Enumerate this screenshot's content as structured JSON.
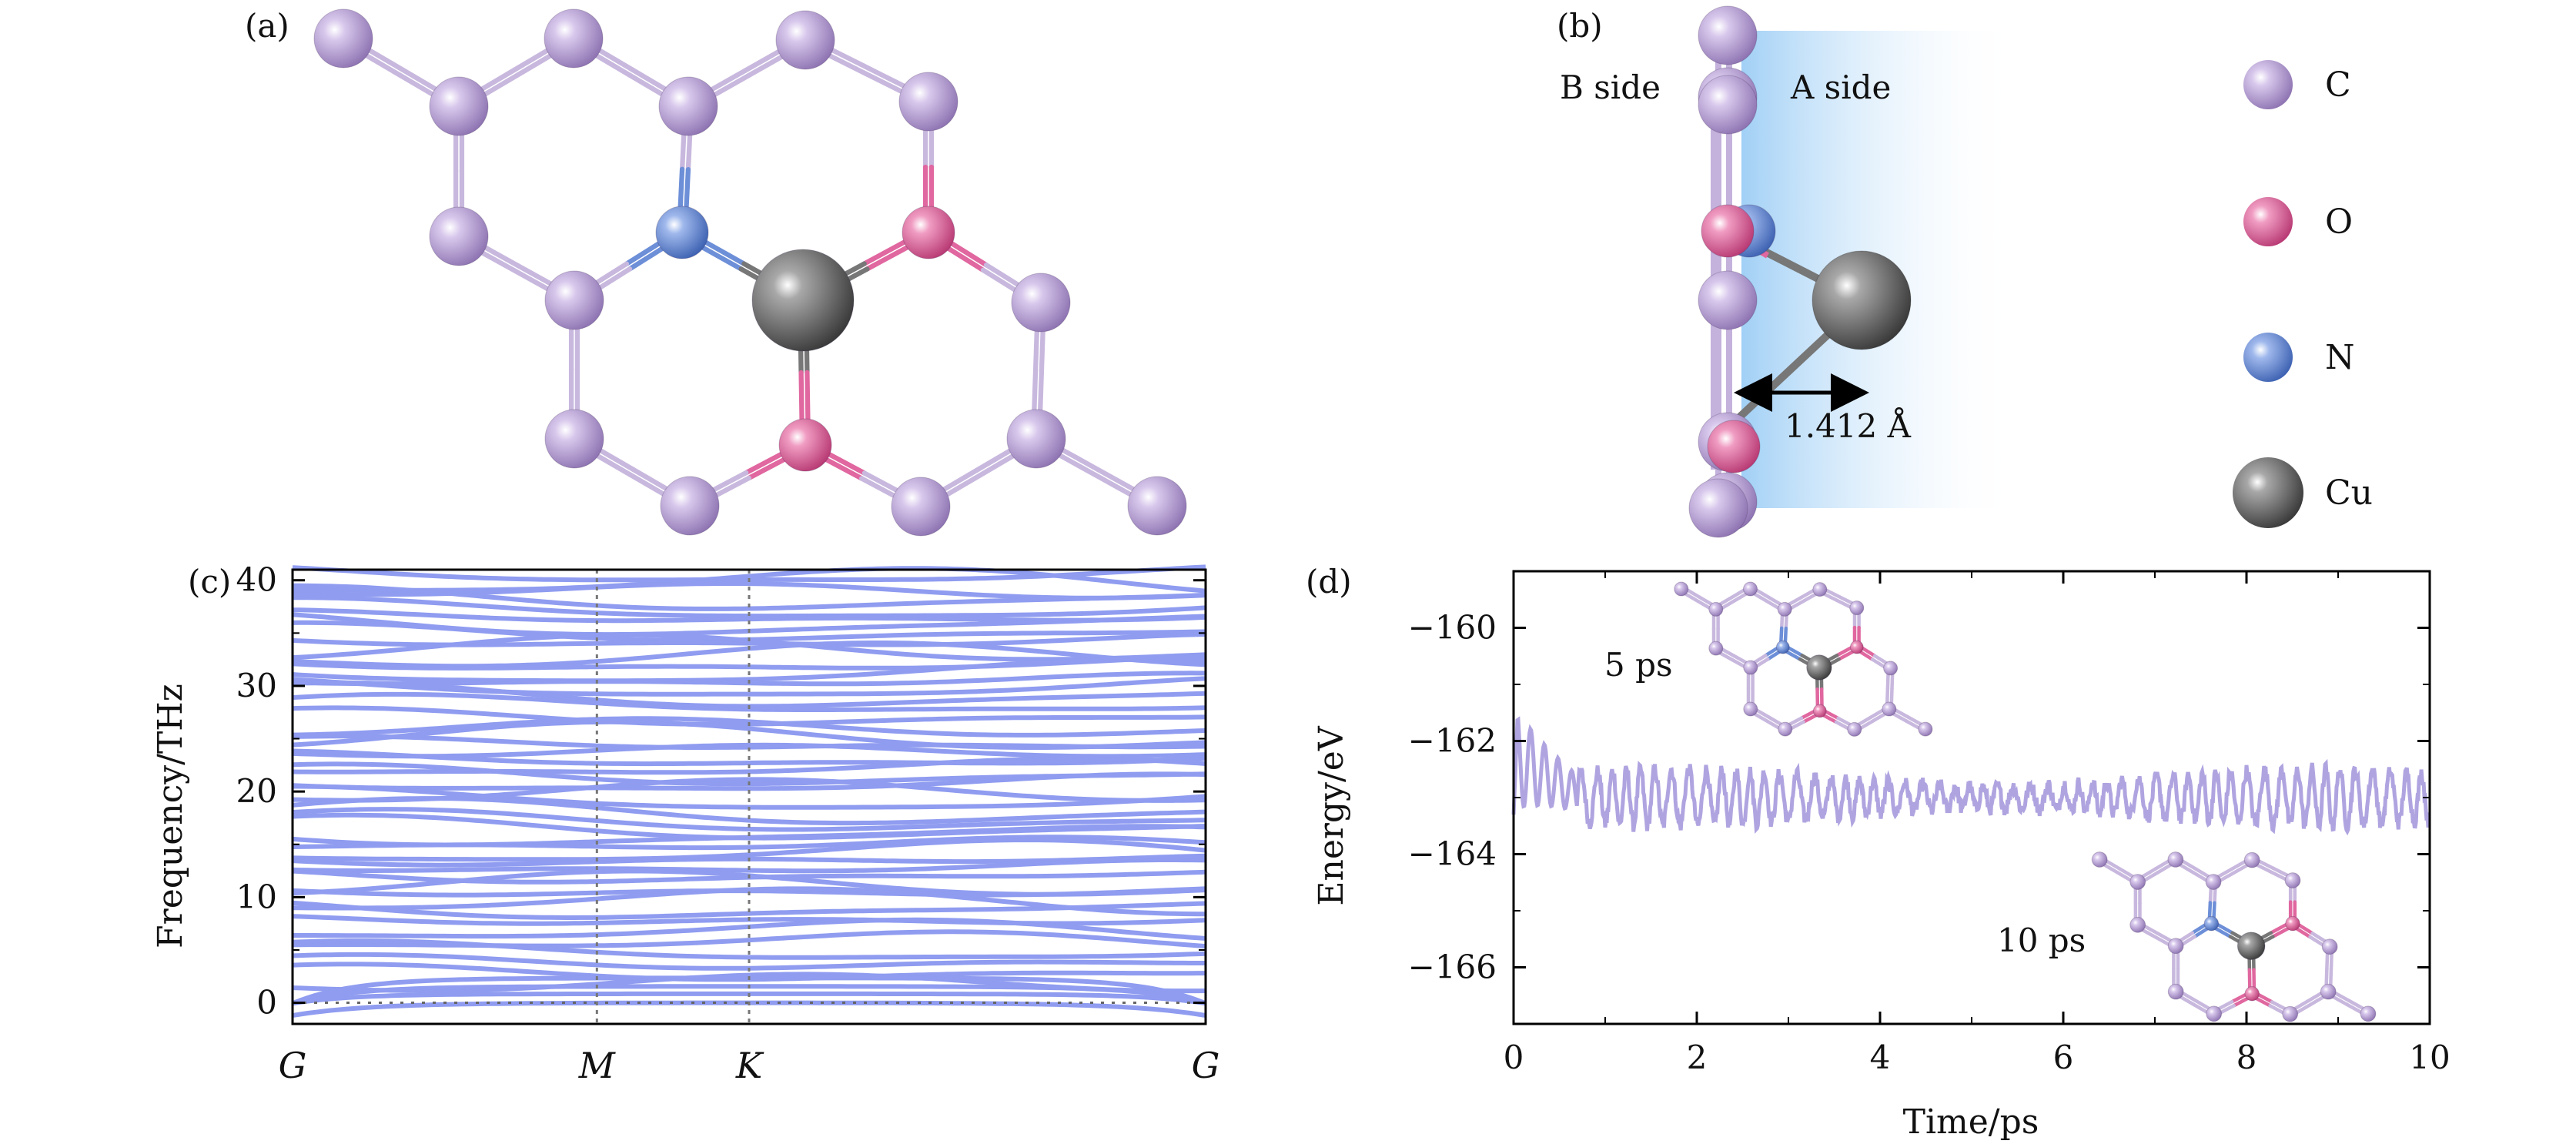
{
  "panels": {
    "a": {
      "label": "(a)"
    },
    "b": {
      "label": "(b)",
      "b_side": "B side",
      "a_side": "A side",
      "distance": "1.412 Å"
    },
    "c": {
      "label": "(c)"
    },
    "d": {
      "label": "(d)",
      "inset_5ps": "5 ps",
      "inset_10ps": "10 ps"
    }
  },
  "legend": [
    {
      "label": "C",
      "color": "#b39bd0"
    },
    {
      "label": "O",
      "color": "#e0679f"
    },
    {
      "label": "N",
      "color": "#6d8fd8"
    },
    {
      "label": "Cu",
      "color": "#6b6b6b"
    }
  ],
  "colors": {
    "C": "#b39bd0",
    "O": "#e0679f",
    "N": "#6d8fd8",
    "Cu": "#6b6b6b",
    "bond": "#c8b8de",
    "phonon": "#8f9cf0",
    "energy": "#b0a4e0"
  },
  "chart_data": [
    {
      "type": "line",
      "panel": "c",
      "title": "",
      "xlabel": "",
      "ylabel": "Frequency/THz",
      "ylim": [
        -2,
        41
      ],
      "yticks": [
        0,
        10,
        20,
        30,
        40
      ],
      "x_labels": [
        {
          "label": "G",
          "x": 0
        },
        {
          "label": "M",
          "x": 1.0
        },
        {
          "label": "K",
          "x": 1.5
        },
        {
          "label": "G",
          "x": 3.0
        }
      ],
      "series_description": "phonon dispersion branches along G-M-K-G",
      "flat_branches": [
        40.5,
        39.8,
        39.0,
        38.2,
        37.2,
        36.5,
        35.8,
        35.0,
        34.2,
        33.5,
        32.8,
        32.0,
        31.2,
        30.5,
        29.8,
        29.0,
        28.2,
        27.0,
        26.0,
        25.2,
        24.5,
        23.8,
        23.0,
        22.2,
        21.5,
        20.7,
        20.0,
        19.2,
        18.0,
        17.2,
        16.5,
        15.8,
        15.0,
        14.2,
        13.5,
        12.8,
        12.0,
        11.2,
        10.5,
        9.6,
        8.8,
        7.8,
        6.8,
        5.8,
        4.8,
        3.8,
        2.8,
        1.8
      ]
    },
    {
      "type": "line",
      "panel": "d",
      "title": "",
      "xlabel": "Time/ps",
      "ylabel": "Energy/eV",
      "xlim": [
        0,
        10
      ],
      "ylim": [
        -167,
        -159
      ],
      "xticks": [
        0,
        2,
        4,
        6,
        8,
        10
      ],
      "yticks": [
        -160,
        -162,
        -164,
        -166
      ],
      "series": [
        {
          "name": "",
          "mean_after_equilibration": -163.0,
          "initial_value": -161.2
        }
      ]
    }
  ]
}
